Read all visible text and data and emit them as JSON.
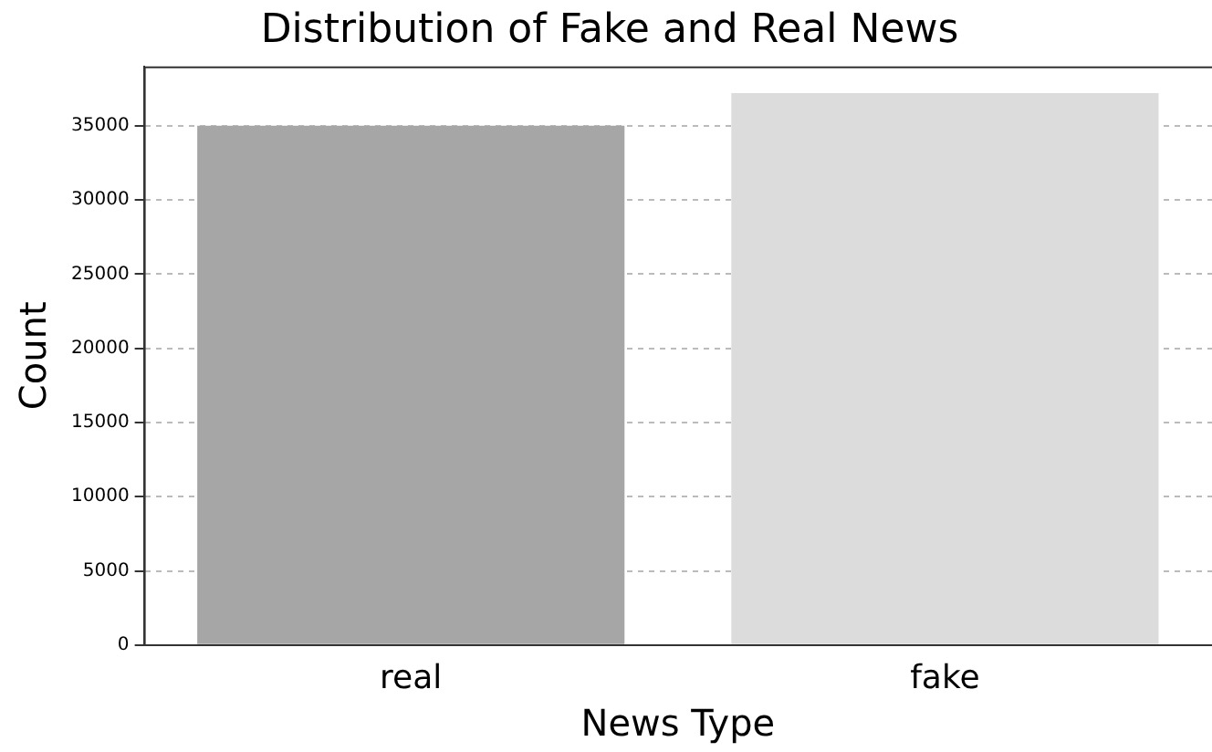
{
  "chart_data": {
    "type": "bar",
    "title": "Distribution of Fake and Real News",
    "xlabel": "News Type",
    "ylabel": "Count",
    "categories": [
      "real",
      "fake"
    ],
    "values": [
      35000,
      37200
    ],
    "colors": [
      "#a6a6a6",
      "#dcdcdc"
    ],
    "ylim": [
      0,
      39000
    ],
    "yticks": [
      0,
      5000,
      10000,
      15000,
      20000,
      25000,
      30000,
      35000
    ],
    "grid": "y",
    "legend": false
  }
}
